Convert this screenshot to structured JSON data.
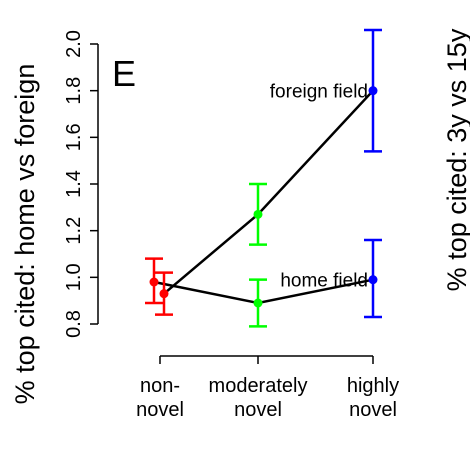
{
  "chart_data": {
    "type": "line",
    "panel_label": "E",
    "title": "",
    "xlabel": "",
    "ylabel": "% top cited: home vs foreign",
    "ylim": [
      0.8,
      2.0
    ],
    "yticks": [
      0.8,
      1.0,
      1.2,
      1.4,
      1.6,
      1.8,
      2.0
    ],
    "categories": [
      "non-\nnovel",
      "moderately\nnovel",
      "highly\nnovel"
    ],
    "series": [
      {
        "name": "foreign field",
        "color": "#000000",
        "values": [
          0.93,
          1.27,
          1.8
        ],
        "ci_low": [
          0.84,
          1.14,
          1.54
        ],
        "ci_high": [
          1.02,
          1.4,
          2.06
        ]
      },
      {
        "name": "home field",
        "color": "#000000",
        "values": [
          0.98,
          0.89,
          0.99
        ],
        "ci_low": [
          0.89,
          0.79,
          0.83
        ],
        "ci_high": [
          1.08,
          0.99,
          1.16
        ]
      }
    ],
    "point_colors": [
      "#ff0000",
      "#00ff00",
      "#0000ff"
    ],
    "right_panel_ylabel_partial": "% top cited: 3y vs 15y"
  }
}
